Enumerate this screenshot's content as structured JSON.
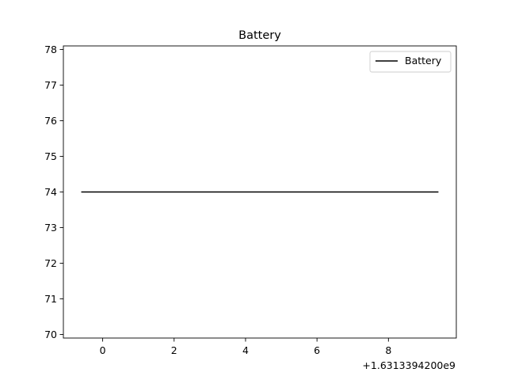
{
  "chart_data": {
    "type": "line",
    "title": "Battery",
    "xlabel": "",
    "ylabel": "",
    "x_offset_label": "+1.6313394200e9",
    "xlim": [
      -1.1,
      9.9
    ],
    "ylim": [
      69.9,
      78.1
    ],
    "x_ticks": [
      0,
      2,
      4,
      6,
      8
    ],
    "y_ticks": [
      70,
      71,
      72,
      73,
      74,
      75,
      76,
      77,
      78
    ],
    "grid": false,
    "legend_position": "top-right",
    "series": [
      {
        "name": "Battery",
        "color": "#000000",
        "x": [
          -0.6,
          9.4
        ],
        "y": [
          74,
          74
        ]
      }
    ]
  }
}
